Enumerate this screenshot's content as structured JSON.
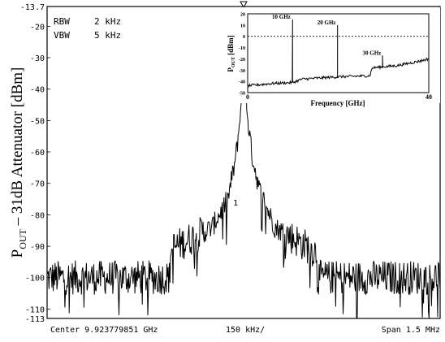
{
  "chart_data": [
    {
      "type": "line",
      "ylabel_main": "P",
      "ylabel_sub": "OUT",
      "ylabel_rest": " – 31dB Attenuator [dBm]",
      "y_ticks": [
        "-13.7",
        "-20",
        "-30",
        "-40",
        "-50",
        "-60",
        "-70",
        "-80",
        "-90",
        "-100",
        "-110",
        "-113"
      ],
      "ylim": [
        -113,
        -13.7
      ],
      "x_center_label": "Center 9.923779851 GHz",
      "x_div_label": "150 kHz/",
      "x_span_label": "Span 1.5 MHz",
      "xlim": [
        -750,
        750
      ],
      "x_unit": "kHz offset from center",
      "rbw_label": "RBW",
      "rbw_value": "2 kHz",
      "vbw_label": "VBW",
      "vbw_value": "5 kHz",
      "marker_label": "1",
      "grid": false,
      "spectrum": {
        "peak": {
          "x": 0,
          "y": -13.7
        },
        "noise_floor": -100,
        "shoulder_points": [
          [
            -280,
            -91
          ],
          [
            -120,
            -84
          ],
          [
            -60,
            -75
          ],
          [
            -30,
            -62
          ],
          [
            -12,
            -48
          ],
          [
            -5,
            -30
          ],
          [
            0,
            -13.7
          ],
          [
            5,
            -28
          ],
          [
            12,
            -46
          ],
          [
            30,
            -60
          ],
          [
            60,
            -72
          ],
          [
            120,
            -84
          ],
          [
            280,
            -92
          ]
        ]
      }
    },
    {
      "type": "line",
      "ylabel_main": "P",
      "ylabel_sub": "OUT",
      "ylabel_rest": " [dBm]",
      "xlabel": "Frequency [GHz]",
      "x_ticks": [
        "0",
        "40"
      ],
      "y_ticks": [
        "20",
        "10",
        "0",
        "-10",
        "-20",
        "-30",
        "-40",
        "-50"
      ],
      "xlim": [
        0,
        40
      ],
      "ylim": [
        -50,
        20
      ],
      "reference_line": 0,
      "annotations": [
        {
          "text": "10 GHz",
          "x": 10,
          "y": 15
        },
        {
          "text": "20 GHz",
          "x": 20,
          "y": 10
        },
        {
          "text": "30 GHz",
          "x": 30,
          "y": -17
        }
      ],
      "harmonic_peaks": [
        {
          "x": 9.92,
          "y": 15
        },
        {
          "x": 19.85,
          "y": 10
        },
        {
          "x": 29.77,
          "y": -17
        }
      ],
      "baseline_points": [
        [
          0,
          -44
        ],
        [
          5,
          -42
        ],
        [
          10,
          -41
        ],
        [
          12,
          -38
        ],
        [
          20,
          -36
        ],
        [
          27,
          -35
        ],
        [
          27.5,
          -28
        ],
        [
          33,
          -26
        ],
        [
          38,
          -22
        ],
        [
          40,
          -20
        ]
      ]
    }
  ]
}
